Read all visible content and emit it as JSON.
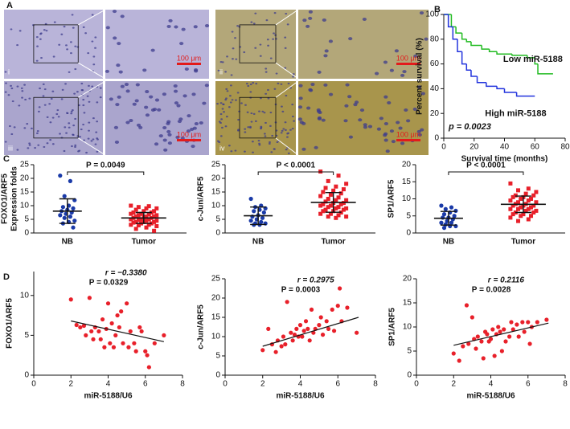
{
  "figure": {
    "panel_labels": [
      "A",
      "B",
      "C",
      "D"
    ],
    "micrographs": [
      {
        "label": "i",
        "scale": "100 μm"
      },
      {
        "label": "ii",
        "scale": "100 μm"
      },
      {
        "label": "iii",
        "scale": "100 μm"
      },
      {
        "label": "iv",
        "scale": "100 μm"
      }
    ]
  },
  "chart_data": [
    {
      "type": "line",
      "step": true,
      "xlabel": "Survival time (months)",
      "ylabel": "Percent survival (%)",
      "xlim": [
        0,
        80
      ],
      "xticks": [
        0,
        20,
        40,
        60,
        80
      ],
      "ylim": [
        0,
        100
      ],
      "yticks": [
        0,
        20,
        40,
        60,
        80,
        100
      ],
      "annotation": "p = 0.0023",
      "series": [
        {
          "name": "Low miR-5188",
          "color": "#22bb22",
          "x": [
            0,
            5,
            8,
            12,
            15,
            18,
            25,
            30,
            35,
            45,
            55,
            60,
            62,
            72
          ],
          "values": [
            100,
            90,
            85,
            80,
            78,
            75,
            72,
            70,
            68,
            67,
            65,
            60,
            52,
            52
          ]
        },
        {
          "name": "High miR-5188",
          "color": "#2233dd",
          "x": [
            0,
            3,
            6,
            9,
            12,
            15,
            18,
            22,
            28,
            35,
            40,
            48,
            60
          ],
          "values": [
            100,
            90,
            80,
            70,
            60,
            55,
            50,
            45,
            42,
            40,
            37,
            34,
            34
          ]
        }
      ]
    },
    {
      "type": "dot",
      "ylabel": [
        "FOXO1/ARF5",
        "Expression folds"
      ],
      "categories": [
        "NB",
        "Tumor"
      ],
      "colors": [
        "#1a3aa8",
        "#e8202a"
      ],
      "ylim": [
        0,
        25
      ],
      "yticks": [
        0,
        5,
        10,
        15,
        20,
        25
      ],
      "annotation": "P = 0.0049",
      "mean": [
        8,
        5.5
      ],
      "sd": [
        4.5,
        2
      ],
      "values": [
        [
          21,
          19,
          13.5,
          12,
          10,
          9.5,
          9,
          8.5,
          8,
          7.5,
          7,
          6.5,
          6,
          5.5,
          4.5,
          4,
          3.5,
          2
        ],
        [
          10,
          9.8,
          9.5,
          9,
          9,
          8.5,
          8,
          8,
          7.5,
          7.5,
          7,
          7,
          6.8,
          6.5,
          6.5,
          6,
          6,
          6,
          5.8,
          5.5,
          5.5,
          5,
          5,
          5,
          4.8,
          4.5,
          4.5,
          4,
          4,
          4,
          3.8,
          3.5,
          3.5,
          3,
          3,
          2.8,
          2.5,
          2,
          1.5,
          0.8
        ]
      ]
    },
    {
      "type": "dot",
      "ylabel": [
        "c-Jun/ARF5"
      ],
      "categories": [
        "NB",
        "Tumor"
      ],
      "colors": [
        "#1a3aa8",
        "#e8202a"
      ],
      "ylim": [
        0,
        25
      ],
      "yticks": [
        0,
        5,
        10,
        15,
        20,
        25
      ],
      "annotation": "P < 0.0001",
      "mean": [
        6.3,
        11.2
      ],
      "sd": [
        3.2,
        3.6
      ],
      "values": [
        [
          12.5,
          10,
          9.5,
          9,
          8.5,
          8,
          7.5,
          6.5,
          6,
          5.5,
          5,
          4.5,
          4,
          3.5,
          3.5,
          3,
          3
        ],
        [
          22.5,
          21,
          19,
          18,
          17,
          16.5,
          16,
          15.5,
          15,
          14.5,
          14,
          13.5,
          13,
          12.5,
          12,
          12,
          11.5,
          11,
          11,
          10.5,
          10.5,
          10,
          10,
          9.5,
          9.5,
          9,
          9,
          8.5,
          8.5,
          8,
          8,
          7.5,
          7,
          7,
          6.5,
          6,
          6,
          5.5
        ]
      ]
    },
    {
      "type": "dot",
      "ylabel": [
        "SP1/ARF5"
      ],
      "categories": [
        "NB",
        "Tumor"
      ],
      "colors": [
        "#1a3aa8",
        "#e8202a"
      ],
      "ylim": [
        0,
        20
      ],
      "yticks": [
        0,
        5,
        10,
        15,
        20
      ],
      "annotation": "P < 0.0001",
      "mean": [
        4.3,
        8.4
      ],
      "sd": [
        2,
        2.4
      ],
      "values": [
        [
          8,
          7.5,
          7,
          6.5,
          6,
          5.5,
          5,
          4.5,
          4.5,
          4,
          3.5,
          3,
          3,
          2.5,
          2,
          2,
          1.5
        ],
        [
          14.5,
          13,
          12.5,
          12,
          11.5,
          11,
          11,
          10.5,
          10.5,
          10,
          10,
          9.5,
          9.5,
          9,
          9,
          8.5,
          8.5,
          8,
          8,
          8,
          7.5,
          7.5,
          7,
          7,
          7,
          6.5,
          6.5,
          6,
          6,
          5.5,
          5.5,
          5,
          5,
          4.5,
          4,
          3.5
        ]
      ]
    },
    {
      "type": "scatter",
      "xlabel": "miR-5188/U6",
      "ylabel": "FOXO1/ARF5",
      "color": "#e8202a",
      "xlim": [
        0,
        8
      ],
      "xticks": [
        0,
        2,
        4,
        6,
        8
      ],
      "ylim": [
        0,
        13
      ],
      "yticks": [
        0,
        5,
        10
      ],
      "annotations": [
        "r = −0.3380",
        "P = 0.0329"
      ],
      "trend": {
        "x": [
          2,
          7
        ],
        "y": [
          6.8,
          4.2
        ]
      },
      "x": [
        2,
        2.3,
        2.5,
        2.7,
        2.8,
        3,
        3.1,
        3.2,
        3.3,
        3.5,
        3.6,
        3.7,
        3.8,
        3.9,
        4,
        4.1,
        4.2,
        4.3,
        4.4,
        4.5,
        4.6,
        4.7,
        4.8,
        5,
        5.1,
        5.2,
        5.4,
        5.5,
        5.7,
        5.8,
        6,
        6.1,
        6.2,
        6.5,
        7
      ],
      "values": [
        9.5,
        6.3,
        6,
        6.2,
        5,
        9.7,
        5.5,
        4.5,
        6,
        5.5,
        4.5,
        7,
        3.5,
        5.8,
        9,
        4,
        6.5,
        3.5,
        5,
        7.5,
        6,
        8,
        4,
        9,
        3.5,
        5.5,
        4,
        3,
        6,
        5.5,
        3,
        2.5,
        1,
        4,
        5
      ]
    },
    {
      "type": "scatter",
      "xlabel": "miR-5188/U6",
      "ylabel": "c-Jun/ARF5",
      "color": "#e8202a",
      "xlim": [
        0,
        8
      ],
      "xticks": [
        0,
        2,
        4,
        6,
        8
      ],
      "ylim": [
        0,
        25
      ],
      "yticks": [
        0,
        5,
        10,
        15,
        20,
        25
      ],
      "annotations": [
        "r = 0.2975",
        "P = 0.0003"
      ],
      "trend": {
        "x": [
          2,
          7.1
        ],
        "y": [
          7.5,
          15
        ]
      },
      "x": [
        2,
        2.3,
        2.5,
        2.7,
        2.8,
        3,
        3.1,
        3.2,
        3.3,
        3.5,
        3.6,
        3.7,
        3.8,
        3.9,
        4,
        4.1,
        4.2,
        4.3,
        4.4,
        4.5,
        4.6,
        4.7,
        4.8,
        5,
        5.1,
        5.2,
        5.4,
        5.5,
        5.7,
        5.8,
        6,
        6.1,
        6.2,
        6.5,
        7
      ],
      "values": [
        6.5,
        12,
        8,
        6,
        9,
        7.5,
        10,
        8,
        19,
        11,
        9,
        10.5,
        12,
        10,
        13,
        10,
        11.5,
        14,
        12,
        9,
        17,
        11,
        12,
        13,
        15,
        10.5,
        14,
        12,
        17,
        11.5,
        18,
        22.5,
        14,
        17.5,
        11
      ]
    },
    {
      "type": "scatter",
      "xlabel": "miR-5188/U6",
      "ylabel": "SP1/ARF5",
      "color": "#e8202a",
      "xlim": [
        0,
        8
      ],
      "xticks": [
        0,
        2,
        4,
        6,
        8
      ],
      "ylim": [
        0,
        20
      ],
      "yticks": [
        0,
        5,
        10,
        15,
        20
      ],
      "annotations": [
        "r = 0.2116",
        "P = 0.0028"
      ],
      "trend": {
        "x": [
          2,
          7.1
        ],
        "y": [
          6.2,
          10.8
        ]
      },
      "x": [
        2,
        2.3,
        2.5,
        2.7,
        2.8,
        3,
        3.1,
        3.2,
        3.3,
        3.5,
        3.6,
        3.7,
        3.8,
        3.9,
        4,
        4.1,
        4.2,
        4.3,
        4.4,
        4.5,
        4.6,
        4.7,
        4.8,
        5,
        5.1,
        5.2,
        5.4,
        5.5,
        5.7,
        5.8,
        6,
        6.1,
        6.2,
        6.5,
        7
      ],
      "values": [
        4.5,
        3,
        6,
        14.5,
        6.5,
        12,
        7.5,
        5.5,
        8,
        7,
        3.5,
        9,
        8.5,
        7,
        7.5,
        9.5,
        4,
        8.5,
        10,
        9,
        5,
        9.5,
        7,
        8,
        11,
        9.5,
        10.5,
        8,
        11,
        9,
        11,
        6.5,
        10,
        11,
        11.5
      ]
    }
  ]
}
